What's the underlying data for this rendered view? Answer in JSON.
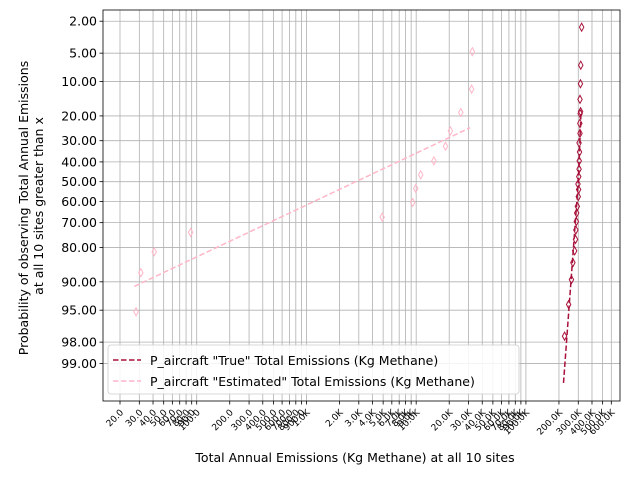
{
  "chart_data": {
    "type": "scatter",
    "xlabel": "Total Annual Emissions (Kg Methane) at all 10 sites",
    "ylabel_lines": [
      "Probability of observing Total Annual Emissions",
      "at all 10 sites greater than x"
    ],
    "x_scale": "log",
    "y_scale": "normal-probability (inverted)",
    "xlim": [
      14,
      720000
    ],
    "ylim_percent": [
      99.75,
      1.4
    ],
    "grid": true,
    "legend_position": "lower-left",
    "x_ticks": [
      {
        "value": 20,
        "label": "20.0"
      },
      {
        "value": 30,
        "label": "30.0"
      },
      {
        "value": 40,
        "label": "40.0"
      },
      {
        "value": 50,
        "label": "50.0"
      },
      {
        "value": 60,
        "label": "60.0"
      },
      {
        "value": 70,
        "label": "70.0"
      },
      {
        "value": 80,
        "label": "80.0"
      },
      {
        "value": 90,
        "label": "90.0"
      },
      {
        "value": 100,
        "label": "100.0"
      },
      {
        "value": 200,
        "label": "200.0"
      },
      {
        "value": 300,
        "label": "300.0"
      },
      {
        "value": 400,
        "label": "400.0"
      },
      {
        "value": 500,
        "label": "500.0"
      },
      {
        "value": 600,
        "label": "600.0"
      },
      {
        "value": 700,
        "label": "700.0"
      },
      {
        "value": 800,
        "label": "800.0"
      },
      {
        "value": 900,
        "label": "900.0"
      },
      {
        "value": 1000,
        "label": "1.0K"
      },
      {
        "value": 2000,
        "label": "2.0K"
      },
      {
        "value": 3000,
        "label": "3.0K"
      },
      {
        "value": 4000,
        "label": "4.0K"
      },
      {
        "value": 5000,
        "label": "5.0K"
      },
      {
        "value": 6000,
        "label": "6.0K"
      },
      {
        "value": 7000,
        "label": "7.0K"
      },
      {
        "value": 8000,
        "label": "8.0K"
      },
      {
        "value": 9000,
        "label": "9.0K"
      },
      {
        "value": 10000,
        "label": "10.0K"
      },
      {
        "value": 20000,
        "label": "20.0K"
      },
      {
        "value": 30000,
        "label": "30.0K"
      },
      {
        "value": 40000,
        "label": "40.0K"
      },
      {
        "value": 50000,
        "label": "50.0K"
      },
      {
        "value": 60000,
        "label": "60.0K"
      },
      {
        "value": 70000,
        "label": "70.0K"
      },
      {
        "value": 80000,
        "label": "80.0K"
      },
      {
        "value": 90000,
        "label": "90.0K"
      },
      {
        "value": 100000,
        "label": "100.0K"
      },
      {
        "value": 200000,
        "label": "200.0K"
      },
      {
        "value": 300000,
        "label": "300.0K"
      },
      {
        "value": 400000,
        "label": "400.0K"
      },
      {
        "value": 500000,
        "label": "500.0K"
      },
      {
        "value": 600000,
        "label": "600.0K"
      }
    ],
    "y_ticks": [
      {
        "value": 2,
        "label": "2.00"
      },
      {
        "value": 5,
        "label": "5.00"
      },
      {
        "value": 10,
        "label": "10.00"
      },
      {
        "value": 20,
        "label": "20.00"
      },
      {
        "value": 30,
        "label": "30.00"
      },
      {
        "value": 40,
        "label": "40.00"
      },
      {
        "value": 50,
        "label": "50.00"
      },
      {
        "value": 60,
        "label": "60.00"
      },
      {
        "value": 70,
        "label": "70.00"
      },
      {
        "value": 80,
        "label": "80.00"
      },
      {
        "value": 90,
        "label": "90.00"
      },
      {
        "value": 95,
        "label": "95.00"
      },
      {
        "value": 98,
        "label": "98.00"
      },
      {
        "value": 99,
        "label": "99.00"
      }
    ],
    "series": [
      {
        "name": "P_aircraft \"True\" Total Emissions (Kg Methane)",
        "color": "#a8123a",
        "points": [
          {
            "x": 225000,
            "p": 97.6
          },
          {
            "x": 245000,
            "p": 94.2
          },
          {
            "x": 260000,
            "p": 89.5
          },
          {
            "x": 268000,
            "p": 85.0
          },
          {
            "x": 278000,
            "p": 81.2
          },
          {
            "x": 283000,
            "p": 77.0
          },
          {
            "x": 285000,
            "p": 73.2
          },
          {
            "x": 288000,
            "p": 69.5
          },
          {
            "x": 290000,
            "p": 65.6
          },
          {
            "x": 294000,
            "p": 62.4
          },
          {
            "x": 300000,
            "p": 57.6
          },
          {
            "x": 302000,
            "p": 54.0
          },
          {
            "x": 298000,
            "p": 51.2
          },
          {
            "x": 303000,
            "p": 47.4
          },
          {
            "x": 305000,
            "p": 43.6
          },
          {
            "x": 306000,
            "p": 39.5
          },
          {
            "x": 308000,
            "p": 35.2
          },
          {
            "x": 305000,
            "p": 31.0
          },
          {
            "x": 311000,
            "p": 26.8
          },
          {
            "x": 310000,
            "p": 22.8
          },
          {
            "x": 312000,
            "p": 19.2
          },
          {
            "x": 315000,
            "p": 18.5
          },
          {
            "x": 311000,
            "p": 14.6
          },
          {
            "x": 314000,
            "p": 10.5
          },
          {
            "x": 316000,
            "p": 6.8
          },
          {
            "x": 322000,
            "p": 2.4
          }
        ],
        "fit": {
          "x": [
            220000,
            300000,
            318000
          ],
          "p": [
            99.5,
            50.0,
            18.0
          ]
        }
      },
      {
        "name": "P_aircraft \"Estimated\" Total Emissions (Kg Methane)",
        "color": "#ffb6c8",
        "points": [
          {
            "x": 28,
            "p": 95.2
          },
          {
            "x": 31,
            "p": 87.8
          },
          {
            "x": 41,
            "p": 81.5
          },
          {
            "x": 88,
            "p": 74.2
          },
          {
            "x": 4900,
            "p": 67.5
          },
          {
            "x": 9300,
            "p": 60.5
          },
          {
            "x": 9900,
            "p": 53.5
          },
          {
            "x": 11000,
            "p": 46.5
          },
          {
            "x": 14500,
            "p": 39.5
          },
          {
            "x": 18500,
            "p": 32.5
          },
          {
            "x": 20500,
            "p": 25.8
          },
          {
            "x": 25500,
            "p": 18.8
          },
          {
            "x": 32000,
            "p": 11.8
          },
          {
            "x": 32500,
            "p": 4.8
          }
        ],
        "fit": {
          "x": [
            27,
            31000
          ],
          "p": [
            91.0,
            24.5
          ]
        }
      }
    ]
  }
}
